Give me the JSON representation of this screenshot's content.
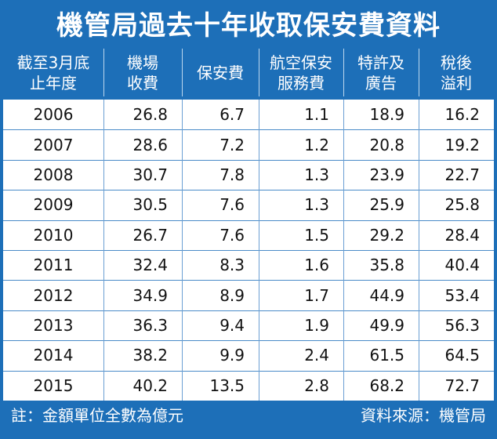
{
  "chart_data": {
    "type": "table",
    "title": "機管局過去十年收取保安費資料",
    "columns": [
      "截至3月底\n止年度",
      "機場\n收費",
      "保安費",
      "航空保安\n服務費",
      "特許及\n廣告",
      "稅後\n溢利"
    ],
    "rows": [
      [
        "2006",
        "26.8",
        "6.7",
        "1.1",
        "18.9",
        "16.2"
      ],
      [
        "2007",
        "28.6",
        "7.2",
        "1.2",
        "20.8",
        "19.2"
      ],
      [
        "2008",
        "30.7",
        "7.8",
        "1.3",
        "23.9",
        "22.7"
      ],
      [
        "2009",
        "30.5",
        "7.6",
        "1.3",
        "25.9",
        "25.8"
      ],
      [
        "2010",
        "26.7",
        "7.6",
        "1.5",
        "29.2",
        "28.4"
      ],
      [
        "2011",
        "32.4",
        "8.3",
        "1.6",
        "35.8",
        "40.4"
      ],
      [
        "2012",
        "34.9",
        "8.9",
        "1.7",
        "44.9",
        "53.4"
      ],
      [
        "2013",
        "36.3",
        "9.4",
        "1.9",
        "49.9",
        "56.3"
      ],
      [
        "2014",
        "38.2",
        "9.9",
        "2.4",
        "61.5",
        "64.5"
      ],
      [
        "2015",
        "40.2",
        "13.5",
        "2.8",
        "68.2",
        "72.7"
      ]
    ],
    "note": "註：金額單位全數為億元",
    "source": "資料來源：機管局"
  },
  "colors": {
    "frame": "#1d6fb8",
    "text_on_frame": "#ffffff",
    "grid": "#4a8bc8"
  }
}
